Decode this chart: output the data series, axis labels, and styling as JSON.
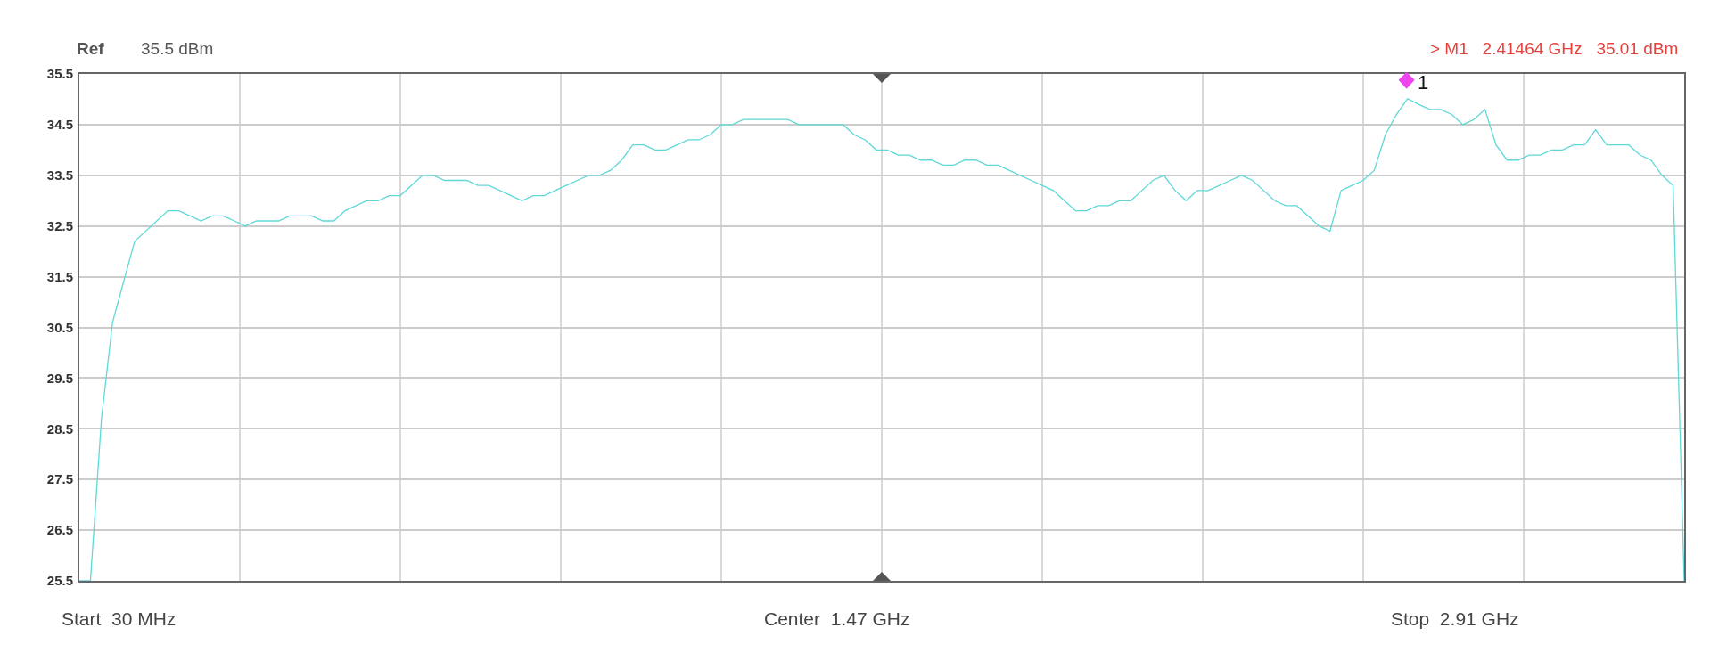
{
  "chart_data": {
    "type": "line",
    "categories": [
      null,
      null,
      null,
      null,
      null,
      null,
      null,
      null,
      null,
      null,
      null,
      null,
      null,
      null,
      null,
      null,
      null,
      null,
      null,
      null,
      null,
      null,
      null,
      null,
      null,
      null,
      null,
      null,
      null,
      null,
      null,
      null,
      null,
      null,
      null,
      null,
      null,
      null,
      null,
      null,
      null,
      null,
      null,
      null,
      null,
      null,
      null,
      null,
      null,
      null,
      null,
      null,
      null,
      null,
      null,
      null,
      null,
      null,
      null,
      null,
      null,
      null,
      null,
      null,
      null,
      null,
      null,
      null,
      null,
      null,
      null,
      null,
      null,
      null,
      null,
      null,
      null,
      null,
      null,
      null,
      null,
      null,
      null,
      null,
      null,
      null,
      null,
      null,
      null,
      null,
      null,
      null,
      null,
      null,
      null,
      null,
      null,
      null,
      null,
      null,
      null,
      null,
      null,
      null,
      null,
      null,
      null,
      null,
      null,
      null,
      null,
      null,
      null,
      null,
      null,
      null,
      null,
      null,
      null,
      null,
      null,
      null,
      null,
      null,
      null,
      null,
      null,
      null,
      null,
      null,
      null,
      null,
      null,
      null,
      null,
      null,
      null,
      null,
      null,
      null,
      null,
      null,
      null,
      null,
      null,
      null
    ],
    "series": [
      {
        "color": "#5fd8d8",
        "values": [
          25.5,
          25.5,
          28.7,
          30.6,
          31.4,
          32.2,
          32.4,
          32.6,
          32.8,
          32.8,
          32.7,
          32.6,
          32.7,
          32.7,
          32.6,
          32.5,
          32.6,
          32.6,
          32.6,
          32.7,
          32.7,
          32.7,
          32.6,
          32.6,
          32.8,
          32.9,
          33.0,
          33.0,
          33.1,
          33.1,
          33.3,
          33.5,
          33.5,
          33.4,
          33.4,
          33.4,
          33.3,
          33.3,
          33.2,
          33.1,
          33.0,
          33.1,
          33.1,
          33.2,
          33.3,
          33.4,
          33.5,
          33.5,
          33.6,
          33.8,
          34.1,
          34.1,
          34.0,
          34.0,
          34.1,
          34.2,
          34.2,
          34.3,
          34.5,
          34.5,
          34.6,
          34.6,
          34.6,
          34.6,
          34.6,
          34.5,
          34.5,
          34.5,
          34.5,
          34.5,
          34.3,
          34.2,
          34.0,
          34.0,
          33.9,
          33.9,
          33.8,
          33.8,
          33.7,
          33.7,
          33.8,
          33.8,
          33.7,
          33.7,
          33.6,
          33.5,
          33.4,
          33.3,
          33.2,
          33.0,
          32.8,
          32.8,
          32.9,
          32.9,
          33.0,
          33.0,
          33.2,
          33.4,
          33.5,
          33.2,
          33.0,
          33.2,
          33.2,
          33.3,
          33.4,
          33.5,
          33.4,
          33.2,
          33.0,
          32.9,
          32.9,
          32.7,
          32.5,
          32.4,
          33.2,
          33.3,
          33.4,
          33.6,
          34.3,
          34.7,
          35.01,
          34.9,
          34.8,
          34.8,
          34.7,
          34.5,
          34.6,
          34.8,
          34.1,
          33.8,
          33.8,
          33.9,
          33.9,
          34.0,
          34.0,
          34.1,
          34.1,
          34.4,
          34.1,
          34.1,
          34.1,
          33.9,
          33.8,
          33.5,
          33.3,
          25.5
        ]
      }
    ],
    "ylim": [
      25.5,
      35.5
    ],
    "yticks": [
      25.5,
      26.5,
      27.5,
      28.5,
      29.5,
      30.5,
      31.5,
      32.5,
      33.5,
      34.5,
      35.5
    ],
    "tick_labels": "y",
    "grid": true,
    "marker": "none",
    "line_style": "solid",
    "annotations": [
      "Ref",
      "35.5 dBm",
      "> M1   2.41464 GHz   35.01 dBm",
      "Start  30 MHz",
      "Center  1.47 GHz",
      "Stop  2.91 GHz",
      "1"
    ]
  }
}
